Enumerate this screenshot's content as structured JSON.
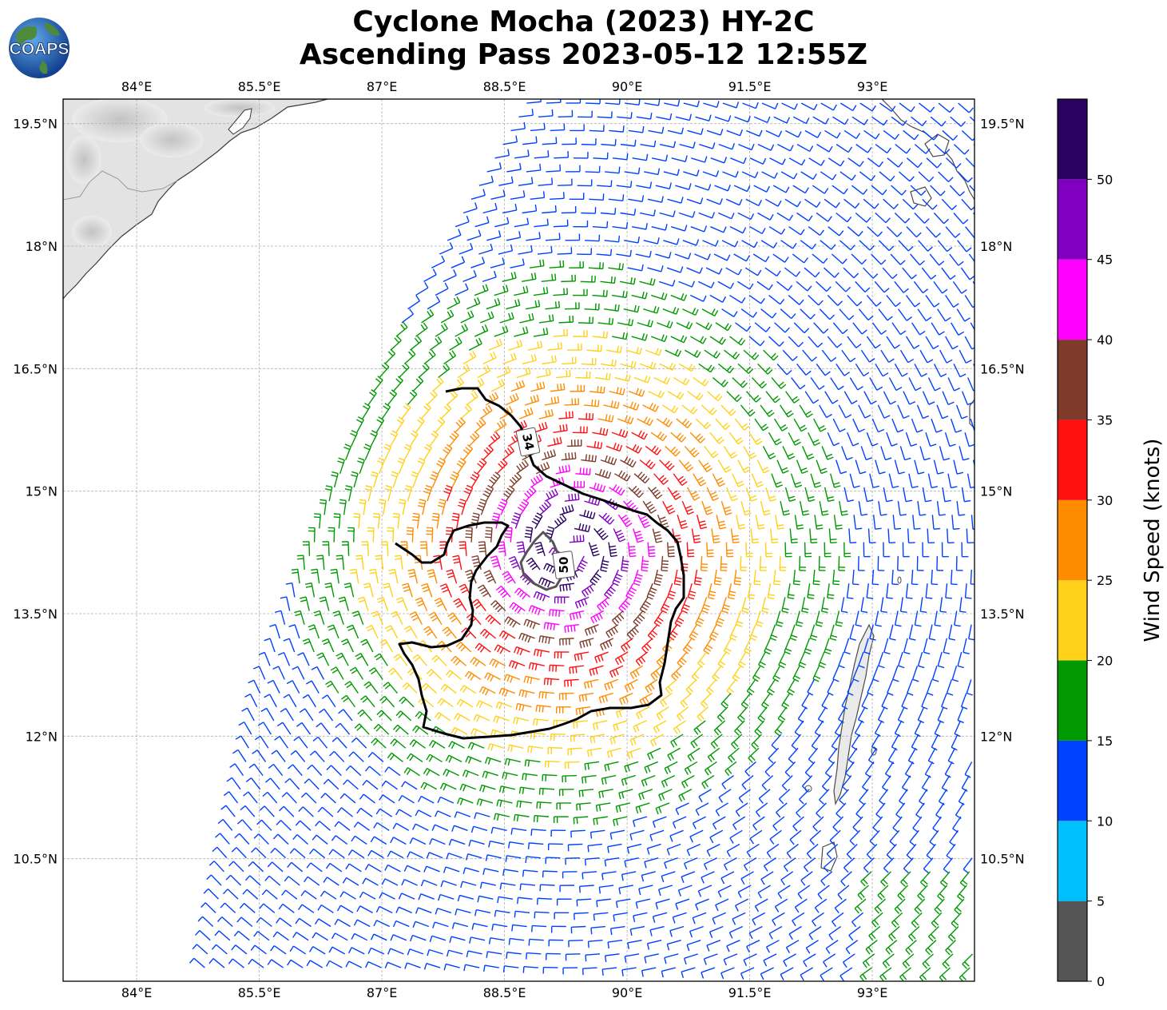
{
  "title_line1": "Cyclone Mocha (2023) HY-2C",
  "title_line2": "Ascending Pass 2023-05-12 12:55Z",
  "logo_text": "COAPS",
  "map": {
    "lon_range": [
      83.1,
      94.25
    ],
    "lat_range": [
      9.0,
      19.8
    ],
    "lon_ticks": [
      "84°E",
      "85.5°E",
      "87°E",
      "88.5°E",
      "90°E",
      "91.5°E",
      "93°E"
    ],
    "lon_tick_values": [
      84,
      85.5,
      87,
      88.5,
      90,
      91.5,
      93
    ],
    "lat_ticks": [
      "19.5°N",
      "18°N",
      "16.5°N",
      "15°N",
      "13.5°N",
      "12°N",
      "10.5°N"
    ],
    "lat_tick_values": [
      19.5,
      18,
      16.5,
      15,
      13.5,
      12,
      10.5
    ],
    "grid": true,
    "storm_center_lon": 89.3,
    "storm_center_lat": 14.3,
    "swath_west_edge": [
      [
        88.8,
        19.8
      ],
      [
        87.3,
        17.2
      ],
      [
        86.4,
        15.0
      ],
      [
        85.5,
        12.5
      ],
      [
        84.8,
        9.0
      ]
    ],
    "contours": [
      {
        "label": "34",
        "color": "#000000",
        "label_lon": 88.82,
        "label_lat": 15.78
      },
      {
        "label": "50",
        "color": "#555555",
        "label_lon": 89.25,
        "label_lat": 14.27
      }
    ]
  },
  "colorbar": {
    "label": "Wind Speed (knots)",
    "tick_labels": [
      "0",
      "5",
      "10",
      "15",
      "20",
      "25",
      "30",
      "35",
      "40",
      "45",
      "50"
    ],
    "tick_values": [
      0,
      5,
      10,
      15,
      20,
      25,
      30,
      35,
      40,
      45,
      50
    ],
    "max": 55,
    "bins": [
      {
        "from": 0,
        "to": 5,
        "color": "#555555"
      },
      {
        "from": 5,
        "to": 10,
        "color": "#00bfff"
      },
      {
        "from": 10,
        "to": 15,
        "color": "#0040ff"
      },
      {
        "from": 15,
        "to": 20,
        "color": "#009900"
      },
      {
        "from": 20,
        "to": 25,
        "color": "#ffd11a"
      },
      {
        "from": 25,
        "to": 30,
        "color": "#ff8c00"
      },
      {
        "from": 30,
        "to": 35,
        "color": "#ff1010"
      },
      {
        "from": 35,
        "to": 40,
        "color": "#7f3b2a"
      },
      {
        "from": 40,
        "to": 45,
        "color": "#ff00ff"
      },
      {
        "from": 45,
        "to": 50,
        "color": "#8000c0"
      },
      {
        "from": 50,
        "to": 55,
        "color": "#2a0060"
      }
    ]
  }
}
